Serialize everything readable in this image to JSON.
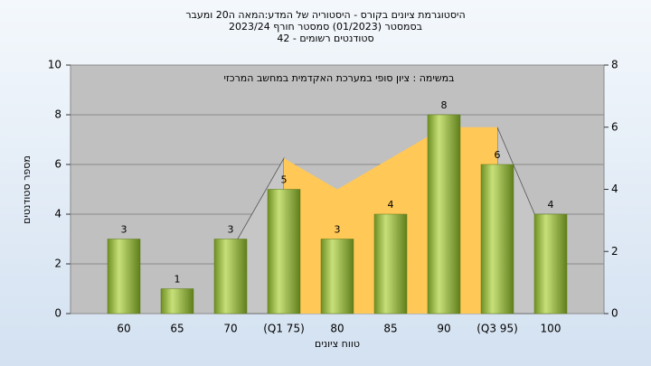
{
  "chart_data": {
    "type": "bar",
    "title": [
      "היסטוגרמת ציונים בקורס - היסטוריה של המדע:המאה ה20 ומעבר",
      "בסמסטר (01/2023) סמסטר חורף 2023/24",
      "סטודנטים רשומים - 42"
    ],
    "annotation": "במשימה : ציון סופי במערכת האקדמית במחשב המרכזי",
    "x_label": "טווח ציונים",
    "y_label": "מספר סטודנטים",
    "categories": [
      "60",
      "65",
      "70",
      "(Q1 75)",
      "80",
      "85",
      "90",
      "(Q3 95)",
      "100"
    ],
    "values": [
      3,
      1,
      3,
      5,
      3,
      4,
      8,
      6,
      4
    ],
    "color": "#8fb33a",
    "areas": [
      {
        "color": "#c6c6c6",
        "axis": "y2",
        "values": [
          null,
          null,
          2,
          5,
          null,
          null,
          null,
          null,
          null
        ]
      },
      {
        "color": "#c6c6c6",
        "axis": "y2",
        "values": [
          null,
          null,
          null,
          null,
          null,
          null,
          null,
          6,
          2
        ]
      },
      {
        "color": "#ffc857",
        "axis": "y2",
        "values": [
          null,
          null,
          null,
          5,
          4,
          5,
          6,
          6,
          null
        ]
      }
    ],
    "ylim": [
      0,
      10
    ],
    "yticks": [
      0,
      2,
      4,
      6,
      8,
      10
    ],
    "y2lim": [
      0,
      8
    ],
    "y2ticks": [
      0,
      2,
      4,
      6,
      8
    ],
    "grid": true
  }
}
